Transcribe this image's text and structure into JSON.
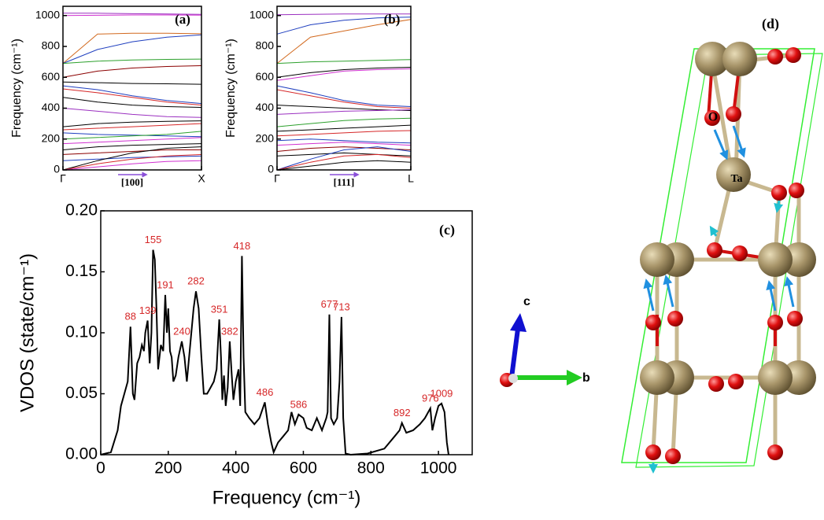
{
  "chart_data": [
    {
      "type": "line",
      "panel_label": "(a)",
      "ylabel": "Frequency (cm⁻¹)",
      "direction": "[100]",
      "x": [
        0,
        0.25,
        0.5,
        0.75,
        1
      ],
      "xlim": [
        0,
        1
      ],
      "ylim": [
        0,
        1060
      ],
      "xticks": [
        {
          "value": 0,
          "label": "Γ"
        },
        {
          "value": 1,
          "label": "X"
        }
      ],
      "yticks": [
        0,
        200,
        400,
        600,
        800,
        1000
      ],
      "series": [
        {
          "color": "#9b30c0",
          "values": [
            1015,
            1015,
            1012,
            1010,
            1008
          ]
        },
        {
          "color": "#d030d0",
          "values": [
            1000,
            1002,
            1004,
            1004,
            1003
          ]
        },
        {
          "color": "#d2691e",
          "values": [
            690,
            880,
            885,
            885,
            882
          ]
        },
        {
          "color": "#1f3fbf",
          "values": [
            690,
            780,
            830,
            860,
            875
          ]
        },
        {
          "color": "#2ca02c",
          "values": [
            690,
            705,
            712,
            716,
            718
          ]
        },
        {
          "color": "#8b0000",
          "values": [
            600,
            640,
            660,
            670,
            675
          ]
        },
        {
          "color": "#000000",
          "values": [
            570,
            565,
            560,
            558,
            555
          ]
        },
        {
          "color": "#1f3fbf",
          "values": [
            545,
            520,
            480,
            450,
            430
          ]
        },
        {
          "color": "#d62728",
          "values": [
            525,
            500,
            470,
            440,
            420
          ]
        },
        {
          "color": "#000000",
          "values": [
            470,
            440,
            420,
            410,
            405
          ]
        },
        {
          "color": "#9b30c0",
          "values": [
            400,
            380,
            360,
            345,
            340
          ]
        },
        {
          "color": "#000000",
          "values": [
            280,
            300,
            310,
            315,
            318
          ]
        },
        {
          "color": "#d62728",
          "values": [
            260,
            270,
            280,
            290,
            300
          ]
        },
        {
          "color": "#1f3fbf",
          "values": [
            240,
            230,
            225,
            220,
            215
          ]
        },
        {
          "color": "#2ca02c",
          "values": [
            200,
            210,
            220,
            230,
            250
          ]
        },
        {
          "color": "#d030d0",
          "values": [
            170,
            180,
            190,
            200,
            210
          ]
        },
        {
          "color": "#000000",
          "values": [
            130,
            150,
            160,
            165,
            170
          ]
        },
        {
          "color": "#8b0000",
          "values": [
            100,
            110,
            120,
            130,
            130
          ]
        },
        {
          "color": "#1f3fbf",
          "values": [
            60,
            70,
            80,
            85,
            90
          ]
        },
        {
          "color": "#000000",
          "values": [
            0,
            60,
            110,
            140,
            150
          ]
        },
        {
          "color": "#d62728",
          "values": [
            0,
            40,
            70,
            90,
            100
          ]
        },
        {
          "color": "#d030d0",
          "values": [
            0,
            20,
            40,
            55,
            60
          ]
        }
      ]
    },
    {
      "type": "line",
      "panel_label": "(b)",
      "ylabel": "Frequency (cm⁻¹)",
      "direction": "[111]",
      "x": [
        0,
        0.25,
        0.5,
        0.75,
        1
      ],
      "xlim": [
        0,
        1
      ],
      "ylim": [
        0,
        1060
      ],
      "xticks": [
        {
          "value": 0,
          "label": "Γ"
        },
        {
          "value": 1,
          "label": "L"
        }
      ],
      "yticks": [
        0,
        200,
        400,
        600,
        800,
        1000
      ],
      "series": [
        {
          "color": "#9b30c0",
          "values": [
            1005,
            1008,
            1010,
            1010,
            1010
          ]
        },
        {
          "color": "#1f3fbf",
          "values": [
            880,
            940,
            970,
            985,
            990
          ]
        },
        {
          "color": "#d2691e",
          "values": [
            690,
            860,
            900,
            940,
            975
          ]
        },
        {
          "color": "#2ca02c",
          "values": [
            690,
            700,
            705,
            710,
            715
          ]
        },
        {
          "color": "#000000",
          "values": [
            600,
            630,
            650,
            660,
            665
          ]
        },
        {
          "color": "#d030d0",
          "values": [
            580,
            610,
            640,
            650,
            655
          ]
        },
        {
          "color": "#1f3fbf",
          "values": [
            545,
            500,
            450,
            420,
            410
          ]
        },
        {
          "color": "#d62728",
          "values": [
            520,
            480,
            440,
            410,
            400
          ]
        },
        {
          "color": "#000000",
          "values": [
            420,
            410,
            400,
            390,
            385
          ]
        },
        {
          "color": "#9b30c0",
          "values": [
            360,
            370,
            380,
            385,
            390
          ]
        },
        {
          "color": "#2ca02c",
          "values": [
            280,
            300,
            320,
            330,
            335
          ]
        },
        {
          "color": "#000000",
          "values": [
            250,
            260,
            270,
            280,
            290
          ]
        },
        {
          "color": "#d62728",
          "values": [
            220,
            230,
            240,
            250,
            255
          ]
        },
        {
          "color": "#1f3fbf",
          "values": [
            190,
            200,
            190,
            180,
            175
          ]
        },
        {
          "color": "#d030d0",
          "values": [
            160,
            170,
            180,
            170,
            160
          ]
        },
        {
          "color": "#8b0000",
          "values": [
            120,
            140,
            150,
            140,
            130
          ]
        },
        {
          "color": "#000000",
          "values": [
            90,
            100,
            110,
            100,
            90
          ]
        },
        {
          "color": "#1f3fbf",
          "values": [
            0,
            70,
            130,
            150,
            120
          ]
        },
        {
          "color": "#d62728",
          "values": [
            0,
            50,
            90,
            100,
            80
          ]
        },
        {
          "color": "#000000",
          "values": [
            0,
            25,
            50,
            60,
            50
          ]
        }
      ]
    },
    {
      "type": "vdos",
      "panel_label": "(c)",
      "xlabel": "Frequency (cm⁻¹)",
      "ylabel": "VDOS (state/cm⁻¹)",
      "xlim": [
        0,
        1100
      ],
      "ylim": [
        0,
        0.2
      ],
      "xticks": [
        0,
        200,
        400,
        600,
        800,
        1000
      ],
      "yticks": [
        {
          "value": 0,
          "label": "0.00"
        },
        {
          "value": 0.05,
          "label": "0.05"
        },
        {
          "value": 0.1,
          "label": "0.10"
        },
        {
          "value": 0.15,
          "label": "0.15"
        },
        {
          "value": 0.2,
          "label": "0.20"
        }
      ],
      "annotation_color": "#d62728",
      "peaks": [
        88,
        139,
        155,
        191,
        240,
        282,
        351,
        382,
        418,
        486,
        586,
        677,
        713,
        892,
        976,
        1009
      ],
      "x": [
        0,
        30,
        50,
        60,
        70,
        80,
        88,
        95,
        100,
        108,
        115,
        122,
        128,
        132,
        139,
        145,
        150,
        155,
        160,
        165,
        170,
        178,
        185,
        191,
        196,
        200,
        205,
        210,
        215,
        222,
        230,
        240,
        248,
        255,
        265,
        275,
        282,
        290,
        298,
        305,
        315,
        325,
        335,
        343,
        351,
        356,
        360,
        365,
        370,
        376,
        382,
        388,
        393,
        400,
        408,
        413,
        418,
        423,
        428,
        440,
        455,
        470,
        486,
        495,
        505,
        512,
        525,
        540,
        555,
        565,
        575,
        586,
        600,
        610,
        625,
        640,
        655,
        668,
        672,
        677,
        682,
        690,
        700,
        707,
        713,
        718,
        725,
        740,
        790,
        840,
        870,
        885,
        892,
        905,
        925,
        945,
        960,
        970,
        976,
        982,
        990,
        1000,
        1009,
        1018,
        1025,
        1030
      ],
      "series": [
        {
          "color": "#000000",
          "values": [
            0,
            0.002,
            0.02,
            0.04,
            0.05,
            0.06,
            0.105,
            0.05,
            0.045,
            0.075,
            0.08,
            0.09,
            0.085,
            0.1,
            0.11,
            0.075,
            0.1,
            0.168,
            0.16,
            0.12,
            0.07,
            0.09,
            0.085,
            0.131,
            0.1,
            0.12,
            0.085,
            0.08,
            0.06,
            0.065,
            0.08,
            0.093,
            0.08,
            0.06,
            0.09,
            0.12,
            0.134,
            0.12,
            0.08,
            0.05,
            0.05,
            0.055,
            0.06,
            0.07,
            0.111,
            0.08,
            0.045,
            0.065,
            0.04,
            0.055,
            0.093,
            0.065,
            0.045,
            0.06,
            0.07,
            0.04,
            0.163,
            0.08,
            0.035,
            0.03,
            0.025,
            0.03,
            0.043,
            0.025,
            0.01,
            0.002,
            0.01,
            0.015,
            0.02,
            0.035,
            0.025,
            0.033,
            0.03,
            0.022,
            0.02,
            0.03,
            0.02,
            0.03,
            0.035,
            0.115,
            0.03,
            0.025,
            0.03,
            0.06,
            0.113,
            0.03,
            0.001,
            0,
            0.001,
            0.005,
            0.015,
            0.02,
            0.026,
            0.018,
            0.02,
            0.025,
            0.03,
            0.035,
            0.038,
            0.02,
            0.03,
            0.04,
            0.042,
            0.035,
            0.01,
            0
          ]
        }
      ]
    }
  ],
  "structure": {
    "panel_label": "(d)",
    "atom_labels": [
      "O",
      "Ta"
    ],
    "axis_labels": [
      "c",
      "b"
    ]
  }
}
